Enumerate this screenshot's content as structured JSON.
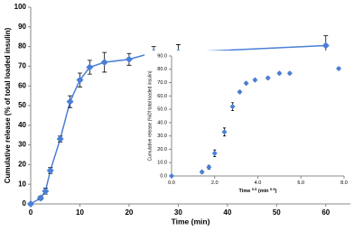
{
  "chart_data": [
    {
      "type": "line",
      "x_label": "Time (min)",
      "y_label": "Cumulative release (% of total loaded insulin)",
      "x": [
        0,
        2,
        3,
        4,
        6,
        8,
        10,
        12,
        15,
        20,
        25,
        30,
        60
      ],
      "series": [
        {
          "color": "#4a7fd6",
          "values": [
            0,
            3,
            6.5,
            17,
            33,
            52,
            63,
            69.5,
            72,
            73.5,
            77,
            77,
            80.5
          ],
          "errors": [
            0.5,
            1,
            1.5,
            1.5,
            1.5,
            3,
            3.5,
            3.5,
            5,
            3,
            3,
            4,
            5
          ]
        }
      ],
      "xlim": [
        0,
        65
      ],
      "xticks": [
        0,
        10,
        20,
        30,
        40,
        50,
        60
      ],
      "ylim": [
        0,
        100
      ],
      "yticks": [
        0,
        10,
        20,
        30,
        40,
        50,
        60,
        70,
        80,
        90,
        100
      ]
    },
    {
      "type": "scatter",
      "x_label_parts": [
        "Time ",
        "0.5",
        " (min ",
        "0.5",
        ")"
      ],
      "y_label": "Cumulative release (%Of total loaded insulin)",
      "x": [
        0,
        1.41,
        1.73,
        2,
        2.45,
        2.83,
        3.16,
        3.46,
        3.87,
        4.47,
        5,
        5.48,
        7.75
      ],
      "series": [
        {
          "color": "#4a7fd6",
          "values": [
            0,
            3,
            6.5,
            17,
            33,
            52,
            63,
            69.5,
            72,
            73.5,
            77,
            77,
            80.5
          ],
          "errors": [
            0.5,
            1,
            1.5,
            2.5,
            3,
            3,
            1,
            1,
            1,
            1,
            1,
            1,
            1
          ]
        }
      ],
      "xlim": [
        0,
        8
      ],
      "xticks": [
        {
          "value": 0,
          "label": "0.0"
        },
        {
          "value": 2,
          "label": "2.0"
        },
        {
          "value": 4,
          "label": "4.0"
        },
        {
          "value": 6,
          "label": "6.0"
        },
        {
          "value": 8,
          "label": "8.0"
        }
      ],
      "ylim": [
        0,
        90
      ],
      "yticks": [
        {
          "value": 0,
          "label": "0.0"
        },
        {
          "value": 10,
          "label": "10.0"
        },
        {
          "value": 20,
          "label": "20.0"
        },
        {
          "value": 30,
          "label": "30.0"
        },
        {
          "value": 40,
          "label": "40.0"
        },
        {
          "value": 50,
          "label": "50.0"
        },
        {
          "value": 60,
          "label": "60.0"
        },
        {
          "value": 70,
          "label": "70.0"
        },
        {
          "value": 80,
          "label": "80.0"
        },
        {
          "value": 90,
          "label": "90.0"
        }
      ]
    }
  ]
}
